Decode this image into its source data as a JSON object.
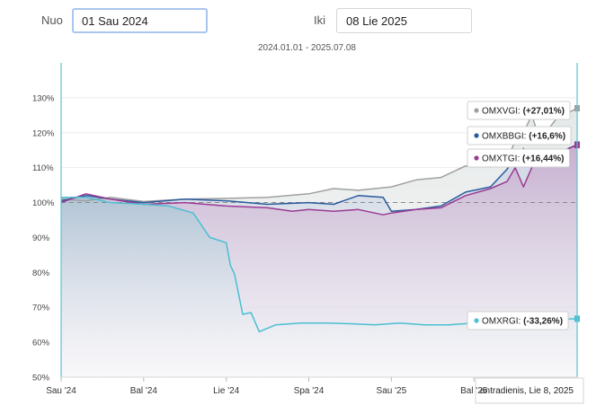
{
  "header": {
    "from_label": "Nuo",
    "from_value": "01 Sau 2024",
    "to_label": "Iki",
    "to_value": "08 Lie 2025",
    "range_text": "2024.01.01 - 2025.07.08"
  },
  "tooltip_date": "antradienis, Lie 8, 2025",
  "chart_data": {
    "type": "line",
    "title": "",
    "xlabel": "",
    "ylabel": "",
    "x_ticks": [
      "Sau '24",
      "Bal '24",
      "Lie '24",
      "Spa '24",
      "Sau '25",
      "Bal '25"
    ],
    "y_ticks": [
      "50%",
      "60%",
      "70%",
      "80%",
      "90%",
      "100%",
      "110%",
      "120%",
      "130%"
    ],
    "ylim": [
      50,
      140
    ],
    "baseline": 100,
    "x_unit": "months since Jan 2024",
    "xlim": [
      0,
      6.25
    ],
    "grid": true,
    "legend": "right (end-of-line labels)",
    "series": [
      {
        "name": "OMXVGI",
        "label_value": "(+27,01%)",
        "color": "#a0a0a0",
        "x": [
          0,
          0.3,
          0.6,
          1,
          1.5,
          2,
          2.5,
          3,
          3.3,
          3.6,
          4,
          4.3,
          4.6,
          4.9,
          5.2,
          5.4,
          5.5,
          5.6,
          5.7,
          5.8,
          6,
          6.25
        ],
        "y": [
          101,
          100.5,
          101.5,
          100.3,
          101,
          101.2,
          101.5,
          102.5,
          104,
          103.5,
          104.5,
          106.5,
          107.2,
          110.5,
          110.2,
          112.5,
          117.5,
          120,
          125,
          118,
          124,
          127
        ]
      },
      {
        "name": "OMXBBGI",
        "label_value": "(+16,6%)",
        "color": "#2a5b9c",
        "x": [
          0,
          0.3,
          0.6,
          1,
          1.5,
          2,
          2.5,
          3,
          3.3,
          3.6,
          3.9,
          4,
          4.3,
          4.6,
          4.9,
          5.2,
          5.4,
          5.5,
          5.6,
          5.7,
          5.8,
          6,
          6.25
        ],
        "y": [
          100.5,
          102,
          101,
          100,
          101,
          100.5,
          99.5,
          100,
          99.5,
          102,
          101.5,
          97.5,
          98,
          99,
          103,
          104.5,
          109.5,
          113,
          115.5,
          111,
          113,
          114,
          116.6
        ]
      },
      {
        "name": "OMXTGI",
        "label_value": "(+16,44%)",
        "color": "#9b3a93",
        "x": [
          0,
          0.3,
          0.6,
          1,
          1.5,
          2,
          2.5,
          2.8,
          3,
          3.3,
          3.6,
          3.9,
          4,
          4.3,
          4.6,
          4.9,
          5.2,
          5.4,
          5.5,
          5.6,
          5.7,
          5.8,
          6,
          6.25
        ],
        "y": [
          100,
          102.5,
          101,
          99.5,
          100,
          99,
          98.5,
          97.5,
          98,
          97.5,
          98,
          96.5,
          97,
          98,
          98.5,
          102,
          104,
          106,
          110,
          104.5,
          110,
          113,
          114,
          116.44
        ]
      },
      {
        "name": "OMXRGI",
        "label_value": "(-33,26%)",
        "color": "#4bbfd2",
        "x": [
          0,
          0.3,
          0.6,
          1,
          1.3,
          1.6,
          1.8,
          2,
          2.05,
          2.1,
          2.2,
          2.3,
          2.4,
          2.6,
          2.9,
          3.2,
          3.5,
          3.8,
          4.1,
          4.4,
          4.7,
          5,
          5.3,
          5.6,
          6,
          6.25
        ],
        "y": [
          101.5,
          101.5,
          100,
          99.5,
          99,
          97,
          90,
          88.5,
          82,
          79.5,
          68,
          68.5,
          63,
          65,
          65.5,
          65.5,
          65.3,
          65,
          65.5,
          65,
          65,
          65.5,
          65.5,
          66,
          66.5,
          66.74
        ]
      }
    ]
  }
}
